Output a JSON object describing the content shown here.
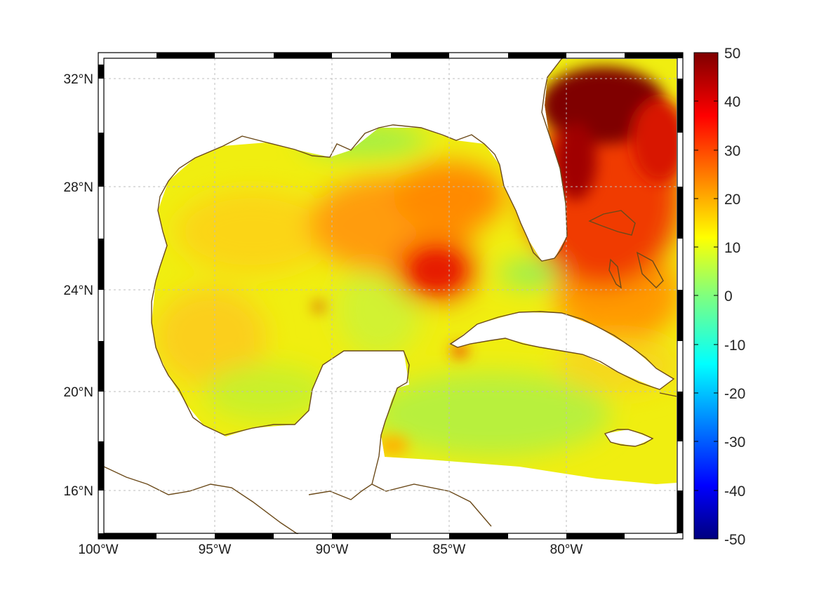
{
  "map": {
    "x_tick_labels": [
      "100°W",
      "95°W",
      "90°W",
      "85°W",
      "80°W"
    ],
    "x_tick_values": [
      -100,
      -95,
      -90,
      -85,
      -80
    ],
    "y_tick_labels": [
      "32°N",
      "28°N",
      "24°N",
      "20°N",
      "16°N"
    ],
    "y_tick_values": [
      32,
      28,
      24,
      20,
      16
    ],
    "lon_range": [
      -100,
      -75.1
    ],
    "lat_range": [
      14.2,
      33
    ],
    "grid": true,
    "coastline_color": "#6b4a1a",
    "land_color": "#ffffff"
  },
  "colorbar": {
    "tick_labels": [
      "50",
      "40",
      "30",
      "20",
      "10",
      "0",
      "-10",
      "-20",
      "-30",
      "-40",
      "-50"
    ],
    "tick_values": [
      50,
      40,
      30,
      20,
      10,
      0,
      -10,
      -20,
      -30,
      -40,
      -50
    ],
    "range": [
      -50,
      50
    ],
    "colormap": "jet",
    "placement": "right"
  },
  "field_colors": {
    "high": "#7a0000",
    "red": "#e82a00",
    "orange": "#ff8c00",
    "yellow": "#f5e400",
    "green": "#b6f23a",
    "low": "#00007f"
  }
}
